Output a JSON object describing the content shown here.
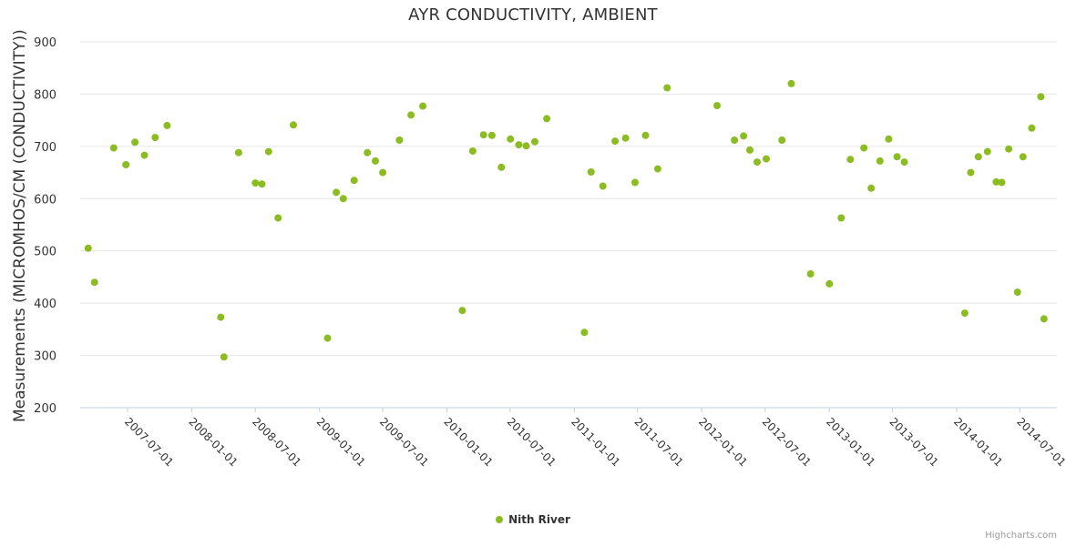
{
  "chart": {
    "title": "AYR CONDUCTIVITY, AMBIENT",
    "y_axis_title": "Measurements (MICROMHOS/CM (CONDUCTIVITY))",
    "legend": {
      "series_name": "Nith River"
    },
    "credits": "Highcharts.com"
  },
  "chart_data": {
    "type": "scatter",
    "title": "AYR CONDUCTIVITY, AMBIENT",
    "xlabel": "",
    "ylabel": "Measurements (MICROMHOS/CM (CONDUCTIVITY))",
    "ylim": [
      200,
      900
    ],
    "yticks": [
      200,
      300,
      400,
      500,
      600,
      700,
      800,
      900
    ],
    "xticks": [
      "2007-07-01",
      "2008-01-01",
      "2008-07-01",
      "2009-01-01",
      "2009-07-01",
      "2010-01-01",
      "2010-07-01",
      "2011-01-01",
      "2011-07-01",
      "2012-01-01",
      "2012-07-01",
      "2013-01-01",
      "2013-07-01",
      "2014-01-01",
      "2014-07-01"
    ],
    "x_range": [
      "2007-02-15",
      "2014-10-15"
    ],
    "grid": true,
    "legend_position": "bottom-center",
    "colors": {
      "point": "#8bbc21",
      "grid": "#e6e6e6",
      "axis_line": "#c0d0e0",
      "tick_label": "#333333",
      "title": "#333333",
      "credits": "#999999"
    },
    "series": [
      {
        "name": "Nith River",
        "color": "#8bbc21",
        "points": [
          [
            "2007-03-10",
            505
          ],
          [
            "2007-03-28",
            440
          ],
          [
            "2007-05-22",
            697
          ],
          [
            "2007-06-26",
            665
          ],
          [
            "2007-07-22",
            708
          ],
          [
            "2007-08-18",
            683
          ],
          [
            "2007-09-18",
            717
          ],
          [
            "2007-10-22",
            740
          ],
          [
            "2008-03-24",
            373
          ],
          [
            "2008-04-02",
            297
          ],
          [
            "2008-05-14",
            688
          ],
          [
            "2008-07-01",
            630
          ],
          [
            "2008-07-20",
            628
          ],
          [
            "2008-08-08",
            690
          ],
          [
            "2008-09-04",
            563
          ],
          [
            "2008-10-18",
            741
          ],
          [
            "2009-01-24",
            333
          ],
          [
            "2009-02-18",
            612
          ],
          [
            "2009-03-10",
            600
          ],
          [
            "2009-04-10",
            635
          ],
          [
            "2009-05-18",
            688
          ],
          [
            "2009-06-10",
            672
          ],
          [
            "2009-07-01",
            650
          ],
          [
            "2009-08-18",
            712
          ],
          [
            "2009-09-20",
            760
          ],
          [
            "2009-10-24",
            777
          ],
          [
            "2010-02-14",
            386
          ],
          [
            "2010-03-16",
            691
          ],
          [
            "2010-04-16",
            722
          ],
          [
            "2010-05-10",
            721
          ],
          [
            "2010-06-06",
            660
          ],
          [
            "2010-07-02",
            714
          ],
          [
            "2010-07-26",
            703
          ],
          [
            "2010-08-16",
            701
          ],
          [
            "2010-09-10",
            709
          ],
          [
            "2010-10-14",
            753
          ],
          [
            "2011-01-30",
            344
          ],
          [
            "2011-02-18",
            651
          ],
          [
            "2011-03-24",
            624
          ],
          [
            "2011-04-28",
            710
          ],
          [
            "2011-05-28",
            716
          ],
          [
            "2011-06-24",
            631
          ],
          [
            "2011-07-24",
            721
          ],
          [
            "2011-08-28",
            657
          ],
          [
            "2011-09-24",
            812
          ],
          [
            "2012-02-14",
            778
          ],
          [
            "2012-04-04",
            712
          ],
          [
            "2012-04-30",
            720
          ],
          [
            "2012-05-18",
            693
          ],
          [
            "2012-06-08",
            670
          ],
          [
            "2012-07-04",
            676
          ],
          [
            "2012-08-18",
            712
          ],
          [
            "2012-09-14",
            820
          ],
          [
            "2012-11-08",
            456
          ],
          [
            "2013-01-01",
            437
          ],
          [
            "2013-02-04",
            563
          ],
          [
            "2013-03-02",
            675
          ],
          [
            "2013-04-10",
            697
          ],
          [
            "2013-05-01",
            620
          ],
          [
            "2013-05-26",
            672
          ],
          [
            "2013-06-20",
            714
          ],
          [
            "2013-07-14",
            680
          ],
          [
            "2013-08-04",
            670
          ],
          [
            "2014-01-24",
            381
          ],
          [
            "2014-02-10",
            650
          ],
          [
            "2014-03-04",
            680
          ],
          [
            "2014-03-30",
            690
          ],
          [
            "2014-04-24",
            632
          ],
          [
            "2014-05-10",
            631
          ],
          [
            "2014-05-30",
            695
          ],
          [
            "2014-06-24",
            421
          ],
          [
            "2014-07-10",
            680
          ],
          [
            "2014-08-04",
            735
          ],
          [
            "2014-08-30",
            795
          ],
          [
            "2014-09-08",
            370
          ]
        ]
      }
    ]
  }
}
